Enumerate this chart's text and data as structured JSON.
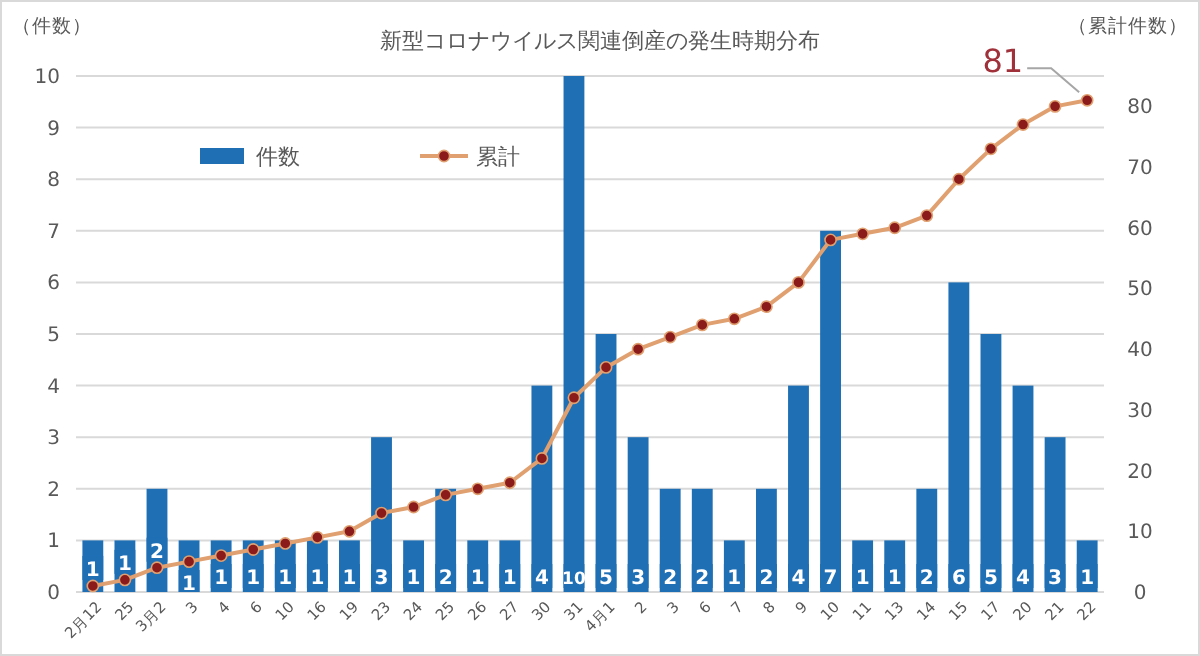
{
  "chart_data": {
    "type": "bar",
    "title": "新型コロナウイルス関連倒産の発生時期分布",
    "ylabel": "（件数）",
    "y2label": "（累計件数）",
    "categories": [
      "2月12",
      "25",
      "3月2",
      "3",
      "4",
      "6",
      "10",
      "16",
      "19",
      "23",
      "24",
      "25",
      "26",
      "27",
      "30",
      "31",
      "4月1",
      "2",
      "3",
      "6",
      "7",
      "8",
      "9",
      "10",
      "11",
      "13",
      "14",
      "15",
      "17",
      "20",
      "21",
      "22"
    ],
    "series": [
      {
        "name": "件数",
        "color": "#1f6fb5",
        "values": [
          1,
          1,
          2,
          1,
          1,
          1,
          1,
          1,
          1,
          3,
          1,
          2,
          1,
          1,
          4,
          10,
          5,
          3,
          2,
          2,
          1,
          2,
          4,
          7,
          1,
          1,
          2,
          6,
          5,
          4,
          3,
          1
        ],
        "value_labels": [
          "1",
          "1",
          "2",
          "1",
          "1",
          "1",
          "1",
          "1",
          "1",
          "3",
          "1",
          "2",
          "1",
          "1",
          "4",
          "10",
          "5",
          "3",
          "2",
          "2",
          "1",
          "2",
          "4",
          "7",
          "1",
          "1",
          "2",
          "6",
          "5",
          "4",
          "3",
          "1"
        ]
      },
      {
        "name": "累計",
        "type": "line",
        "axis": "y2",
        "color": "#e0a070",
        "marker": "circle",
        "values": [
          1,
          2,
          4,
          5,
          6,
          7,
          8,
          9,
          10,
          13,
          14,
          16,
          17,
          18,
          22,
          32,
          37,
          40,
          42,
          44,
          45,
          47,
          51,
          58,
          59,
          60,
          62,
          68,
          73,
          77,
          80,
          81
        ]
      }
    ],
    "ylim": [
      0,
      10
    ],
    "yticks": [
      0,
      1,
      2,
      3,
      4,
      5,
      6,
      7,
      8,
      9,
      10
    ],
    "y2lim": [
      0,
      85
    ],
    "y2ticks": [
      0,
      10,
      20,
      30,
      40,
      50,
      60,
      70,
      80
    ],
    "grid": "y",
    "legend": "top left",
    "annotations": [
      "81"
    ]
  }
}
